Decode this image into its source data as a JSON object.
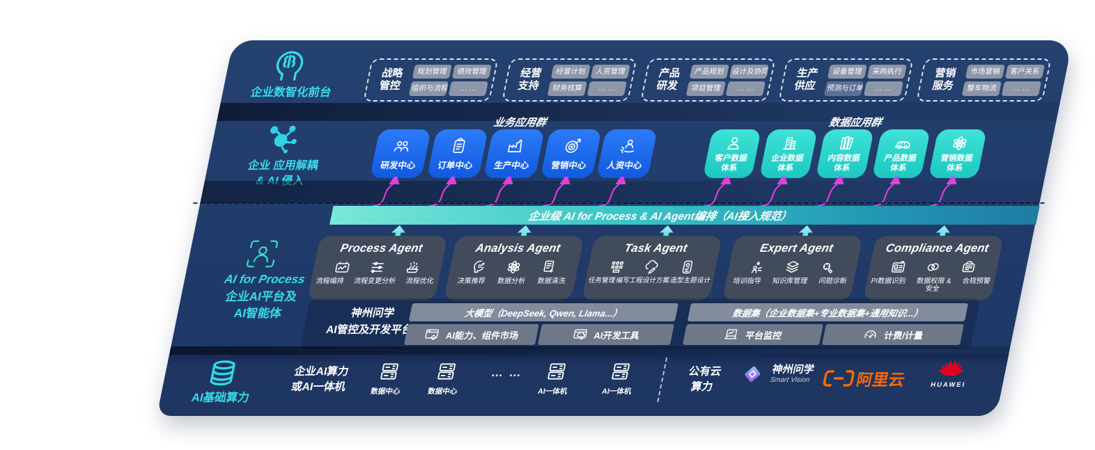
{
  "colors": {
    "panel_navy": "#203b6a",
    "accent_cyan": "#38dce9",
    "app_blue": "#1b66ee",
    "data_teal": "#27d6cc",
    "banner_teal": "#3cc6c8",
    "arrow_magenta": "#e23fda",
    "chip_gray": "#8d96a8",
    "agent_box_gray": "#424b5c",
    "aliyun_orange": "#ff6a00",
    "huawei_red": "#e2001c"
  },
  "front": {
    "label": "企业数智化前台",
    "icon": "brain-head-icon",
    "groups": [
      {
        "name_lines": [
          "战略",
          "管控"
        ],
        "chips": [
          "规划管理",
          "绩效管理",
          "组织与流程",
          "… …"
        ]
      },
      {
        "name_lines": [
          "经营",
          "支持"
        ],
        "chips": [
          "经营计划",
          "人资管理",
          "财务核算",
          "… …"
        ]
      },
      {
        "name_lines": [
          "产品",
          "研发"
        ],
        "chips": [
          "产品规划",
          "设计及协同",
          "项目管理",
          "… …"
        ]
      },
      {
        "name_lines": [
          "生产",
          "供应"
        ],
        "chips": [
          "设备管理",
          "采购执行",
          "预测与订单",
          "… …"
        ]
      },
      {
        "name_lines": [
          "营销",
          "服务"
        ],
        "chips": [
          "市场营销",
          "客户关系",
          "整车物流",
          "… …"
        ]
      }
    ]
  },
  "apps": {
    "label_lines": [
      "企业 应用解耦",
      "& AI 侵入"
    ],
    "icon": "molecule-icon",
    "business": {
      "title": "业务应用群",
      "items": [
        {
          "label": "研发中心",
          "icon": "team-icon"
        },
        {
          "label": "订单中心",
          "icon": "clipboard-icon"
        },
        {
          "label": "生产中心",
          "icon": "factory-icon"
        },
        {
          "label": "营销中心",
          "icon": "target-icon"
        },
        {
          "label": "人资中心",
          "icon": "hr-people-icon"
        }
      ]
    },
    "data": {
      "title": "数据应用群",
      "items": [
        {
          "label_lines": [
            "客户数据",
            "体系"
          ],
          "icon": "person-icon"
        },
        {
          "label_lines": [
            "企业数据",
            "体系"
          ],
          "icon": "building-icon"
        },
        {
          "label_lines": [
            "内容数据",
            "体系"
          ],
          "icon": "books-icon"
        },
        {
          "label_lines": [
            "产品数据",
            "体系"
          ],
          "icon": "car-icon"
        },
        {
          "label_lines": [
            "营销数据",
            "体系"
          ],
          "icon": "atom-icon"
        }
      ]
    }
  },
  "banner": {
    "text": "企业级 AI for Process & AI Agent编排（AI接入规范）"
  },
  "platform_layer": {
    "label_lines": [
      "AI for Process",
      "企业AI平台及",
      "AI智能体"
    ],
    "icon": "person-scan-icon",
    "agents": [
      {
        "title": "Process Agent",
        "items": [
          {
            "label": "流程编排",
            "icon": "workflow-icon"
          },
          {
            "label": "流程变更分析",
            "icon": "change-analysis-icon"
          },
          {
            "label": "流程优化",
            "icon": "optimize-icon"
          }
        ]
      },
      {
        "title": "Analysis Agent",
        "items": [
          {
            "label": "决策推荐",
            "icon": "decision-icon"
          },
          {
            "label": "数据分析",
            "icon": "atom-icon"
          },
          {
            "label": "数据清洗",
            "icon": "data-clean-icon"
          }
        ]
      },
      {
        "title": "Task Agent",
        "items": [
          {
            "label": "任务管理",
            "icon": "task-grid-icon"
          },
          {
            "label": "编写工程设计方案",
            "icon": "cloud-edit-icon"
          },
          {
            "label": "造型主题设计",
            "icon": "theme-design-icon"
          }
        ]
      },
      {
        "title": "Expert Agent",
        "items": [
          {
            "label": "培训指导",
            "icon": "training-icon"
          },
          {
            "label": "知识库管理",
            "icon": "layers-icon"
          },
          {
            "label": "问题诊断",
            "icon": "diagnose-icon"
          }
        ]
      },
      {
        "title": "Compliance Agent",
        "items": [
          {
            "label": "PI数据识别",
            "icon": "id-card-icon"
          },
          {
            "label": "数据权限 & 安全",
            "icon": "permission-icon"
          },
          {
            "label": "合规预警",
            "icon": "alert-icon"
          }
        ]
      }
    ],
    "dev_platform": {
      "label_lines": [
        "神州问学",
        "AI管控及开发平台"
      ],
      "model_bar": "大模型（DeepSeek, Qwen, Llama...）",
      "dataset_bar": "数据集（企业数据集+专业数据集+通用知识...）",
      "cells": [
        {
          "label": "AI能力、组件市场",
          "icon": "window-gear-icon"
        },
        {
          "label": "AI开发工具",
          "icon": "window-cloud-icon"
        },
        {
          "label": "平台监控",
          "icon": "laptop-monitor-icon"
        },
        {
          "label": "计费/计量",
          "icon": "gauge-icon"
        }
      ]
    }
  },
  "infra": {
    "label": "AI基础算力",
    "icon": "database-icon",
    "compute_lines": [
      "企业AI算力",
      "或AI一体机"
    ],
    "nodes": [
      {
        "label": "数据中心",
        "icon": "server-icon"
      },
      {
        "label": "数据中心",
        "icon": "server-icon"
      },
      {
        "ellipsis": "… …"
      },
      {
        "label": "AI一体机",
        "icon": "server-icon"
      },
      {
        "label": "AI一体机",
        "icon": "server-icon"
      }
    ],
    "cloud_lines": [
      "公有云",
      "算力"
    ],
    "vendors": {
      "smartvision": {
        "name": "神州问学",
        "sub": "Smart Vision",
        "icon": "diamond-logo-icon"
      },
      "aliyun": {
        "name": "阿里云",
        "icon": "aliyun-bracket-icon"
      },
      "huawei": {
        "name": "HUAWEI",
        "icon": "huawei-flower-icon"
      }
    }
  }
}
